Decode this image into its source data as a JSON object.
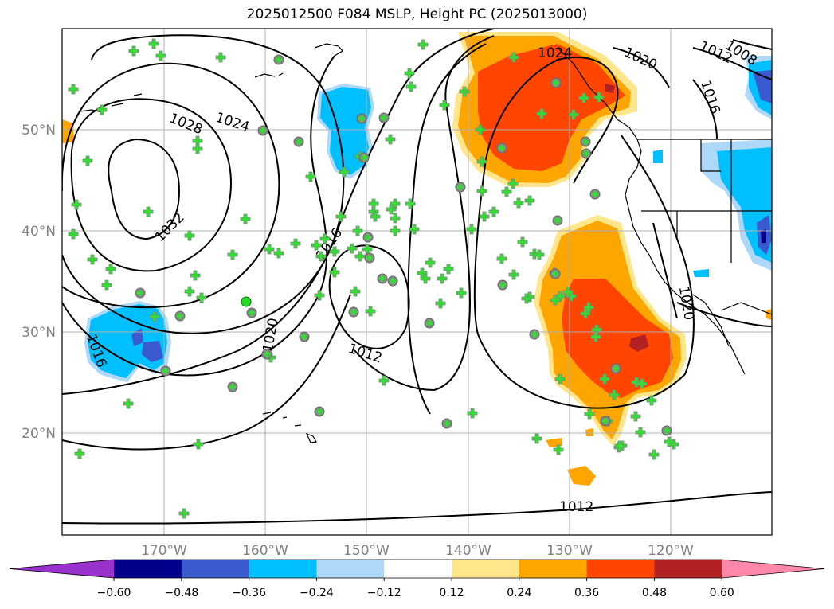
{
  "title": "2025012500 F084 MSLP, Height PC (2025013000)",
  "map": {
    "lon_ticks": [
      "170°W",
      "160°W",
      "150°W",
      "140°W",
      "130°W",
      "120°W"
    ],
    "lat_ticks": [
      "50°N",
      "40°N",
      "30°N",
      "20°N"
    ],
    "isobar_labels": [
      "1028",
      "1024",
      "1032",
      "1016",
      "1016",
      "1020",
      "1012",
      "1012",
      "1024",
      "1020",
      "1012",
      "1008",
      "1016",
      "1020"
    ]
  },
  "colorbar": {
    "ticks": [
      "−0.60",
      "−0.48",
      "−0.36",
      "−0.24",
      "−0.12",
      "0.12",
      "0.24",
      "0.36",
      "0.48",
      "0.60"
    ],
    "colors": [
      "#9932cc",
      "#00008b",
      "#3a5bd0",
      "#00bfff",
      "#add8f7",
      "#ffffff",
      "#ffe68a",
      "#ffa500",
      "#ff4500",
      "#b22222",
      "#ff88aa"
    ]
  }
}
